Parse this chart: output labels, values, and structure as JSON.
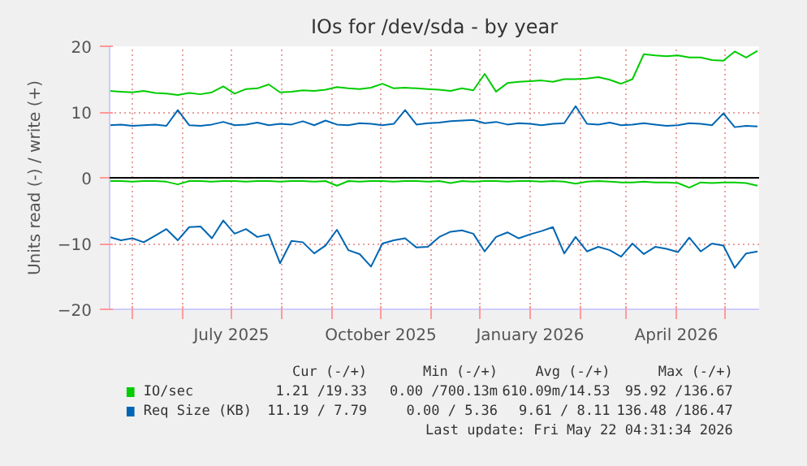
{
  "chart_data": {
    "type": "line",
    "title": "IOs for /dev/sda - by year",
    "ylabel": "Units read (-) / write (+)",
    "x": [
      "2025-04-17",
      "2025-04-24",
      "2025-05-01",
      "2025-05-08",
      "2025-05-15",
      "2025-05-22",
      "2025-05-29",
      "2025-06-05",
      "2025-06-12",
      "2025-06-19",
      "2025-06-26",
      "2025-07-03",
      "2025-07-10",
      "2025-07-17",
      "2025-07-24",
      "2025-07-31",
      "2025-08-07",
      "2025-08-14",
      "2025-08-21",
      "2025-08-28",
      "2025-09-04",
      "2025-09-11",
      "2025-09-18",
      "2025-09-25",
      "2025-10-02",
      "2025-10-09",
      "2025-10-16",
      "2025-10-23",
      "2025-10-30",
      "2025-11-06",
      "2025-11-13",
      "2025-11-20",
      "2025-11-27",
      "2025-12-04",
      "2025-12-11",
      "2025-12-18",
      "2025-12-25",
      "2026-01-01",
      "2026-01-08",
      "2026-01-15",
      "2026-01-22",
      "2026-01-29",
      "2026-02-05",
      "2026-02-12",
      "2026-02-19",
      "2026-02-26",
      "2026-03-05",
      "2026-03-12",
      "2026-03-19",
      "2026-03-26",
      "2026-04-02",
      "2026-04-09",
      "2026-04-16",
      "2026-04-23",
      "2026-04-30",
      "2026-05-07",
      "2026-05-14",
      "2026-05-21"
    ],
    "series": [
      {
        "name": "IO/sec",
        "color": "#00cc00",
        "values": [
          13.2,
          13.1,
          13.0,
          13.2,
          12.9,
          12.8,
          12.6,
          12.9,
          12.7,
          13.0,
          13.9,
          12.8,
          13.5,
          13.6,
          14.2,
          13.0,
          13.1,
          13.3,
          13.2,
          13.4,
          13.8,
          13.6,
          13.5,
          13.7,
          14.3,
          13.6,
          13.7,
          13.6,
          13.5,
          13.4,
          13.2,
          13.6,
          13.3,
          15.8,
          13.1,
          14.4,
          14.6,
          14.7,
          14.8,
          14.6,
          15.0,
          15.0,
          15.1,
          15.3,
          14.9,
          14.3,
          15.0,
          18.8,
          18.6,
          18.5,
          18.6,
          18.3,
          18.3,
          17.9,
          17.8,
          19.2,
          18.3,
          19.3
        ]
      },
      {
        "color": "#00cc00",
        "values": [
          -0.5,
          -0.5,
          -0.6,
          -0.5,
          -0.5,
          -0.6,
          -1.0,
          -0.5,
          -0.5,
          -0.6,
          -0.5,
          -0.5,
          -0.6,
          -0.5,
          -0.5,
          -0.6,
          -0.5,
          -0.5,
          -0.6,
          -0.5,
          -1.2,
          -0.5,
          -0.6,
          -0.5,
          -0.5,
          -0.6,
          -0.5,
          -0.5,
          -0.6,
          -0.5,
          -0.8,
          -0.5,
          -0.6,
          -0.5,
          -0.5,
          -0.6,
          -0.5,
          -0.5,
          -0.6,
          -0.5,
          -0.6,
          -0.9,
          -0.6,
          -0.5,
          -0.6,
          -0.7,
          -0.7,
          -0.6,
          -0.7,
          -0.7,
          -0.8,
          -1.5,
          -0.7,
          -0.8,
          -0.7,
          -0.7,
          -0.8,
          -1.2
        ]
      },
      {
        "name": "Req Size (KB)",
        "color": "#0066b3",
        "values": [
          8.0,
          8.1,
          7.9,
          8.0,
          8.1,
          7.9,
          10.3,
          8.0,
          7.9,
          8.1,
          8.5,
          8.0,
          8.1,
          8.4,
          8.0,
          8.2,
          8.1,
          8.6,
          8.0,
          8.7,
          8.1,
          8.0,
          8.3,
          8.2,
          8.0,
          8.2,
          10.3,
          8.1,
          8.3,
          8.4,
          8.6,
          8.7,
          8.8,
          8.3,
          8.5,
          8.1,
          8.3,
          8.2,
          8.0,
          8.2,
          8.3,
          10.9,
          8.2,
          8.1,
          8.4,
          8.0,
          8.1,
          8.3,
          8.1,
          7.9,
          8.0,
          8.3,
          8.2,
          8.0,
          9.8,
          7.7,
          7.9,
          7.8
        ]
      },
      {
        "color": "#0066b3",
        "values": [
          -9.0,
          -9.5,
          -9.2,
          -9.8,
          -8.8,
          -7.8,
          -9.5,
          -7.5,
          -7.4,
          -9.2,
          -6.5,
          -8.5,
          -7.8,
          -9.0,
          -8.6,
          -13.0,
          -9.6,
          -9.8,
          -11.5,
          -10.3,
          -7.9,
          -11.0,
          -11.6,
          -13.5,
          -10.0,
          -9.5,
          -9.2,
          -10.6,
          -10.5,
          -9.0,
          -8.2,
          -8.0,
          -8.5,
          -11.2,
          -9.0,
          -8.3,
          -9.2,
          -8.6,
          -8.1,
          -7.5,
          -11.5,
          -9.0,
          -11.2,
          -10.5,
          -11.0,
          -12.0,
          -10.0,
          -11.6,
          -10.5,
          -10.8,
          -11.3,
          -9.1,
          -11.2,
          -10.0,
          -10.3,
          -13.7,
          -11.5,
          -11.2
        ]
      }
    ],
    "xlim": [
      "2025-04-17",
      "2026-05-22"
    ],
    "xticks": [
      {
        "value": "2025-05-01",
        "label": null
      },
      {
        "value": "2025-06-01",
        "label": null
      },
      {
        "value": "2025-07-01",
        "label": "July 2025"
      },
      {
        "value": "2025-08-01",
        "label": null
      },
      {
        "value": "2025-09-01",
        "label": null
      },
      {
        "value": "2025-10-01",
        "label": "October 2025"
      },
      {
        "value": "2025-11-01",
        "label": null
      },
      {
        "value": "2025-12-01",
        "label": null
      },
      {
        "value": "2026-01-01",
        "label": "January 2026"
      },
      {
        "value": "2026-02-01",
        "label": null
      },
      {
        "value": "2026-03-01",
        "label": null
      },
      {
        "value": "2026-04-01",
        "label": "April 2026"
      },
      {
        "value": "2026-05-01",
        "label": null
      }
    ],
    "ylim": [
      -20,
      20
    ],
    "yticks": [
      -20,
      -10,
      0,
      10,
      20
    ],
    "ref_lines": [
      {
        "axis": "y",
        "value": 0,
        "color": "#000000"
      }
    ],
    "grid": true,
    "legend": "bottom",
    "marker": "none",
    "line_style": "solid",
    "annotations": [
      "Cur (-/+)",
      "Min (-/+)",
      "Avg (-/+)",
      "Max (-/+)",
      "1.21 /19.33",
      "0.00 /700.13m",
      "610.09m/14.53",
      "95.92 /136.67",
      "11.19 / 7.79",
      "0.00 / 5.36",
      "9.61 / 8.11",
      "136.48 /186.47",
      "Last update: Fri May 22 04:31:34 2026"
    ]
  }
}
